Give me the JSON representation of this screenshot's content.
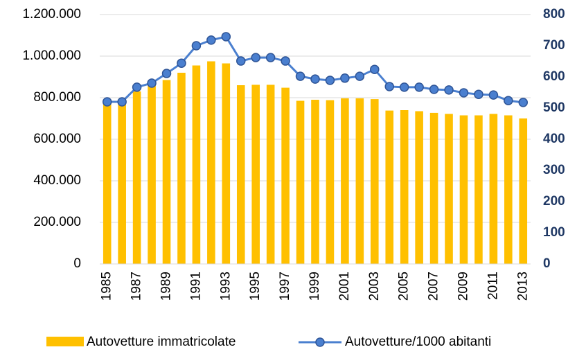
{
  "chart_data": {
    "type": "bar-line",
    "categories": [
      "1985",
      null,
      "1987",
      null,
      "1989",
      null,
      "1991",
      null,
      "1993",
      null,
      "1995",
      null,
      "1997",
      null,
      "1999",
      null,
      "2001",
      null,
      "2003",
      null,
      "2005",
      null,
      "2007",
      null,
      "2009",
      null,
      "2011",
      null,
      "2013"
    ],
    "series": [
      {
        "name": "Autovetture immatricolate",
        "type": "bar",
        "color": "#ffc000",
        "values": [
          790000,
          790000,
          830000,
          860000,
          885000,
          920000,
          955000,
          975000,
          965000,
          860000,
          862000,
          862000,
          848000,
          785000,
          790000,
          788000,
          797000,
          797000,
          793000,
          738000,
          740000,
          735000,
          727000,
          722000,
          715000,
          715000,
          722000,
          715000,
          700000
        ]
      },
      {
        "name": "Autovetture/1000 abitanti",
        "type": "line",
        "axis": "y2",
        "color": "#4a7fcf",
        "values": [
          520,
          520,
          567,
          580,
          611,
          644,
          700,
          718,
          729,
          651,
          662,
          662,
          651,
          602,
          593,
          589,
          596,
          602,
          624,
          569,
          567,
          567,
          560,
          558,
          549,
          544,
          542,
          524,
          518
        ]
      }
    ],
    "ylim": [
      0,
      1200000
    ],
    "yticks": [
      0,
      {
        "value": 200000,
        "label": "200.000"
      },
      {
        "value": 400000,
        "label": "400.000"
      },
      {
        "value": 600000,
        "label": "600.000"
      },
      {
        "value": 800000,
        "label": "800.000"
      },
      {
        "value": 1000000,
        "label": "1.000.000"
      },
      {
        "value": 1200000,
        "label": "1.200.000"
      }
    ],
    "y2lim": [
      0,
      800
    ],
    "y2ticks": [
      0,
      100,
      200,
      300,
      400,
      500,
      600,
      700,
      800
    ],
    "grid": true,
    "legend": "bottom"
  }
}
